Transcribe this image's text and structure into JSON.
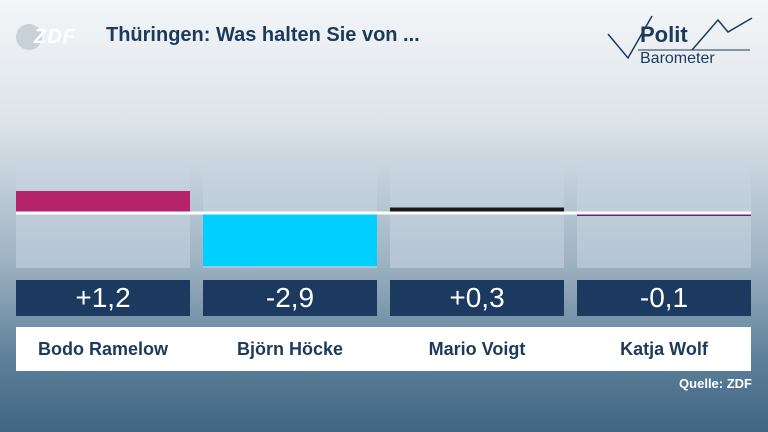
{
  "header": {
    "logo_text": "ZDF",
    "title": "Thüringen: Was halten Sie von ...",
    "brand_line1": "Polit",
    "brand_line2": "Barometer"
  },
  "chart_data": {
    "type": "bar",
    "title": "Thüringen: Was halten Sie von ...",
    "categories": [
      "Bodo Ramelow",
      "Björn Höcke",
      "Mario Voigt",
      "Katja Wolf"
    ],
    "values": [
      1.2,
      -2.9,
      0.3,
      -0.1
    ],
    "value_labels": [
      "+1,2",
      "-2,9",
      "+0,3",
      "-0,1"
    ],
    "colors": [
      "#b5246a",
      "#00cfff",
      "#1a1a1a",
      "#6b1f7a"
    ],
    "ylim": [
      -3,
      3
    ],
    "grid": false,
    "legend": "none"
  },
  "footer": {
    "source": "Quelle: ZDF"
  }
}
